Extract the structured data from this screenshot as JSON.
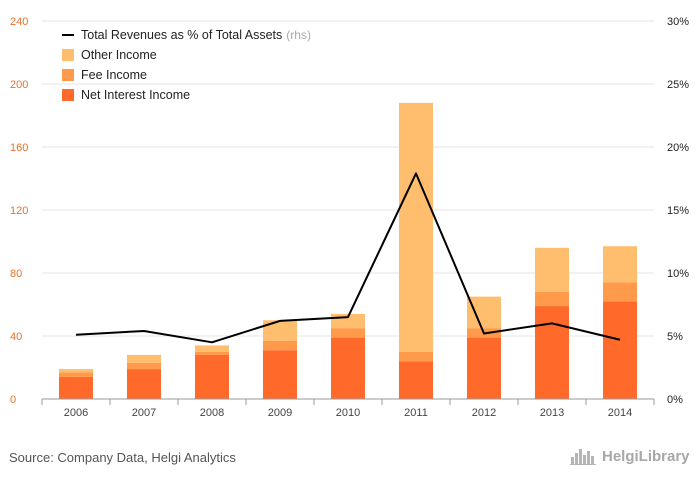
{
  "chart_data": {
    "type": "bar",
    "stacked": true,
    "categories": [
      "2006",
      "2007",
      "2008",
      "2009",
      "2010",
      "2011",
      "2012",
      "2013",
      "2014"
    ],
    "series": [
      {
        "name": "Net Interest Income",
        "color": "#ff6a2b",
        "values": [
          14,
          19,
          28,
          31,
          39,
          24,
          39,
          59,
          62
        ]
      },
      {
        "name": "Fee Income",
        "color": "#ff9a4a",
        "values": [
          3,
          4,
          2,
          6,
          6,
          6,
          6,
          9,
          12
        ]
      },
      {
        "name": "Other Income",
        "color": "#ffbd6e",
        "values": [
          2,
          5,
          4,
          13,
          9,
          158,
          20,
          28,
          23
        ]
      }
    ],
    "line": {
      "name": "Total Revenues as % of Total Assets",
      "note": "(rhs)",
      "color": "#000000",
      "values": [
        5.1,
        5.4,
        4.5,
        6.2,
        6.5,
        17.9,
        5.2,
        6.0,
        4.7
      ]
    },
    "y_left": {
      "min": 0,
      "max": 240,
      "ticks": [
        "0",
        "40",
        "80",
        "120",
        "160",
        "200",
        "240"
      ]
    },
    "y_right": {
      "min": 0,
      "max": 30,
      "ticks": [
        "0%",
        "5%",
        "10%",
        "15%",
        "20%",
        "25%",
        "30%"
      ]
    },
    "legend_position": "top-left",
    "grid": "horizontal"
  },
  "footer": {
    "source": "Source: Company Data, Helgi Analytics",
    "brand": "HelgiLibrary",
    "brand_icon": "city-skyline-icon"
  }
}
